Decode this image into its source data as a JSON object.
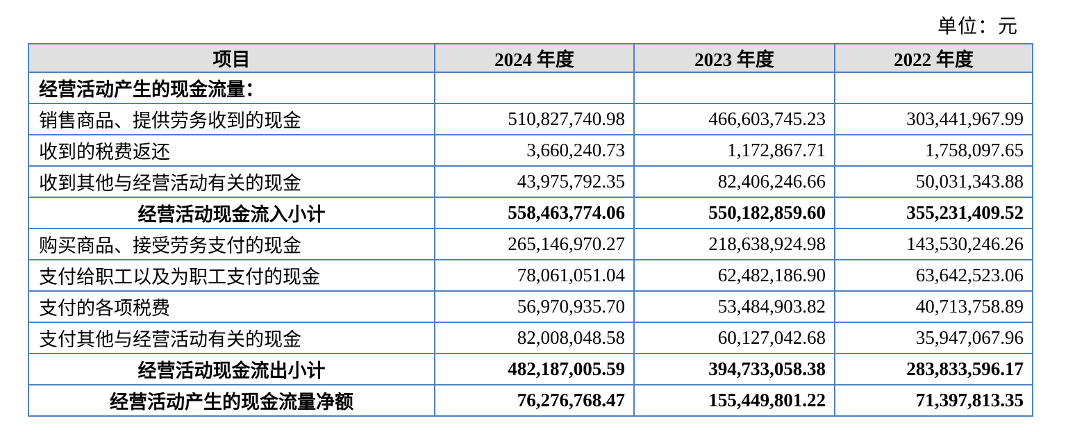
{
  "unit_label": "单位：元",
  "colors": {
    "table_border": "#4f81bd",
    "header_background": "#e0e0e0"
  },
  "table": {
    "columns": [
      "项目",
      "2024 年度",
      "2023 年度",
      "2022 年度"
    ],
    "rows": [
      {
        "label": "经营活动产生的现金流量：",
        "values": [
          "",
          "",
          ""
        ],
        "bold": true,
        "label_align": "left"
      },
      {
        "label": "销售商品、提供劳务收到的现金",
        "values": [
          "510,827,740.98",
          "466,603,745.23",
          "303,441,967.99"
        ],
        "bold": false,
        "label_align": "left"
      },
      {
        "label": "收到的税费返还",
        "values": [
          "3,660,240.73",
          "1,172,867.71",
          "1,758,097.65"
        ],
        "bold": false,
        "label_align": "left"
      },
      {
        "label": "收到其他与经营活动有关的现金",
        "values": [
          "43,975,792.35",
          "82,406,246.66",
          "50,031,343.88"
        ],
        "bold": false,
        "label_align": "left"
      },
      {
        "label": "经营活动现金流入小计",
        "values": [
          "558,463,774.06",
          "550,182,859.60",
          "355,231,409.52"
        ],
        "bold": true,
        "label_align": "center"
      },
      {
        "label": "购买商品、接受劳务支付的现金",
        "values": [
          "265,146,970.27",
          "218,638,924.98",
          "143,530,246.26"
        ],
        "bold": false,
        "label_align": "left"
      },
      {
        "label": "支付给职工以及为职工支付的现金",
        "values": [
          "78,061,051.04",
          "62,482,186.90",
          "63,642,523.06"
        ],
        "bold": false,
        "label_align": "left"
      },
      {
        "label": "支付的各项税费",
        "values": [
          "56,970,935.70",
          "53,484,903.82",
          "40,713,758.89"
        ],
        "bold": false,
        "label_align": "left"
      },
      {
        "label": "支付其他与经营活动有关的现金",
        "values": [
          "82,008,048.58",
          "60,127,042.68",
          "35,947,067.96"
        ],
        "bold": false,
        "label_align": "left"
      },
      {
        "label": "经营活动现金流出小计",
        "values": [
          "482,187,005.59",
          "394,733,058.38",
          "283,833,596.17"
        ],
        "bold": true,
        "label_align": "center"
      },
      {
        "label": "经营活动产生的现金流量净额",
        "values": [
          "76,276,768.47",
          "155,449,801.22",
          "71,397,813.35"
        ],
        "bold": true,
        "label_align": "center"
      }
    ]
  }
}
